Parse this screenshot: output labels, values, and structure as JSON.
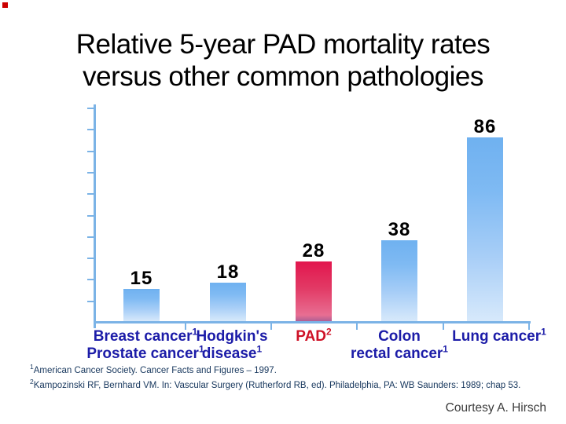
{
  "slide": {
    "title": {
      "line1": "Relative 5-year PAD mortality rates",
      "line2": "versus other common pathologies"
    },
    "courtesy": "Courtesy A. Hirsch"
  },
  "chart_data": {
    "type": "bar",
    "title": "Relative 5-year PAD mortality rates versus other common pathologies",
    "categories": [
      "Breast cancer1 / Prostate cancer1",
      "Hodgkin's disease1",
      "PAD2",
      "Colon / rectal cancer1",
      "Lung cancer1"
    ],
    "values": [
      15,
      18,
      28,
      38,
      86
    ],
    "value_labels": [
      "15",
      "18",
      "28",
      "38",
      "86"
    ],
    "highlight_index": 2,
    "xlabel": "",
    "ylabel": "",
    "ylim": [
      0,
      100
    ],
    "ytick_step": 10,
    "yaxis_tick_labels_shown": false,
    "grid": false,
    "legend": "none",
    "bar_color": "#74b4f1",
    "highlight_color": "#e0164c",
    "labels": [
      {
        "key": "breast-prostate-cancer",
        "lines": [
          [
            {
              "t": "Breast cancer",
              "sup": "1"
            }
          ],
          [
            {
              "t": "Prostate cancer",
              "sup": "1"
            }
          ]
        ],
        "red": false
      },
      {
        "key": "hodgkins-disease",
        "lines": [
          [
            {
              "t": "Hodgkin's",
              "sup": ""
            }
          ],
          [
            {
              "t": "disease",
              "sup": "1"
            }
          ]
        ],
        "red": false
      },
      {
        "key": "pad",
        "lines": [
          [
            {
              "t": "PAD",
              "sup": "2"
            }
          ]
        ],
        "red": true
      },
      {
        "key": "colon-rectal-cancer",
        "lines": [
          [
            {
              "t": "Colon",
              "sup": ""
            }
          ],
          [
            {
              "t": "rectal cancer",
              "sup": "1"
            }
          ]
        ],
        "red": false
      },
      {
        "key": "lung-cancer",
        "lines": [
          [
            {
              "t": "Lung cancer",
              "sup": "1"
            }
          ]
        ],
        "red": false
      }
    ]
  },
  "footnotes": [
    {
      "sup": "1",
      "text": "American Cancer Society. Cancer Facts and Figures – 1997."
    },
    {
      "sup": "2",
      "text": "Kampozinski RF, Bernhard VM. In: Vascular Surgery (Rutherford RB, ed).  Philadelphia, PA: WB Saunders: 1989; chap 53."
    }
  ],
  "colors": {
    "axis": "#7bb3e6",
    "bar_gradient_top": "#6fb1f0",
    "bar_gradient_bottom": "#d7e9fb",
    "highlight_gradient_top": "#e2164e",
    "highlight_gradient_bottom": "#ae5f94",
    "value_label": "#000000",
    "category_label": "#1c1ca8",
    "pad_label": "#ce1126",
    "footnote_text": "#17375d",
    "courtesy_text": "#3c3c3c",
    "accent_square": "#cc0000"
  }
}
